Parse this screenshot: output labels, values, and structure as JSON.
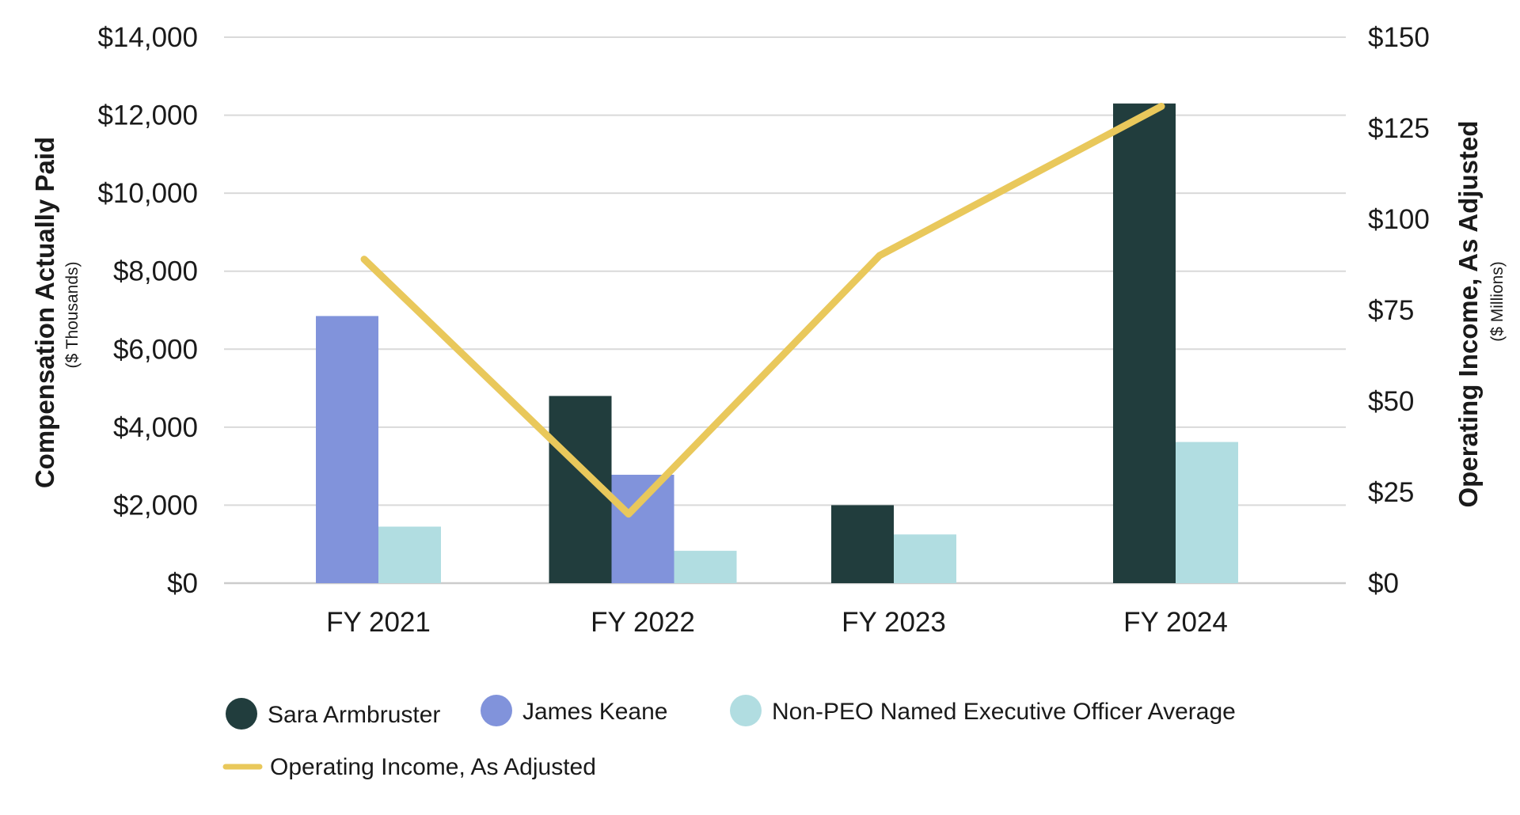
{
  "chart_data": {
    "type": "bar",
    "categories": [
      "FY 2021",
      "FY 2022",
      "FY 2023",
      "FY 2024"
    ],
    "series": [
      {
        "name": "Sara Armbruster",
        "values": [
          null,
          4800,
          2000,
          12300
        ],
        "color": "#213d3d"
      },
      {
        "name": "James Keane",
        "values": [
          6850,
          2780,
          null,
          null
        ],
        "color": "#8193db"
      },
      {
        "name": "Non-PEO Named Executive Officer Average",
        "values": [
          1450,
          830,
          1250,
          3620
        ],
        "color": "#b1dde1"
      }
    ],
    "line_series": {
      "name": "Operating Income, As Adjusted",
      "values": [
        89,
        19,
        90,
        131
      ],
      "color": "#e9c85b",
      "axis": "right"
    },
    "left_axis": {
      "title": "Compensation Actually Paid",
      "subtitle": "($ Thousands)",
      "ylim": [
        0,
        14000
      ],
      "ticks": [
        0,
        2000,
        4000,
        6000,
        8000,
        10000,
        12000,
        14000
      ],
      "tick_labels": [
        "$0",
        "$2,000",
        "$4,000",
        "$6,000",
        "$8,000",
        "$10,000",
        "$12,000",
        "$14,000"
      ]
    },
    "right_axis": {
      "title": "Operating Income, As Adjusted",
      "subtitle": "($ Millions)",
      "ylim": [
        0,
        150
      ],
      "ticks": [
        0,
        25,
        50,
        75,
        100,
        125,
        150
      ],
      "tick_labels": [
        "$0",
        "$25",
        "$50",
        "$75",
        "$100",
        "$125",
        "$150"
      ]
    },
    "grid": true,
    "legend_position": "bottom-left"
  },
  "colors": {
    "gridline": "#d9d9d9",
    "baseline": "#cccccc"
  }
}
